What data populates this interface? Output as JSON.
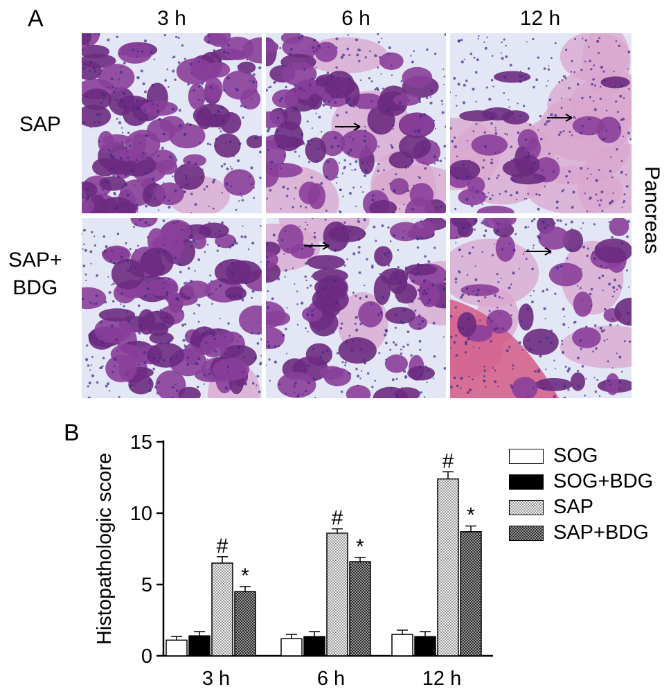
{
  "panelA": {
    "letter": "A",
    "columns": [
      "3 h",
      "6 h",
      "12 h"
    ],
    "rows": [
      {
        "label_lines": [
          "SAP"
        ]
      },
      {
        "label_lines": [
          "SAP+",
          "BDG"
        ]
      }
    ],
    "side_label": "Pancreas",
    "arrow_note": "→",
    "tile_colors": {
      "stroma": "#e3e6f4",
      "acini": "#8a3f9a",
      "acini_dark": "#6b2a80",
      "nuclei": "#3a2a8a",
      "necrosis": "#d9a6cf",
      "hemorrhage": "#d45a86"
    }
  },
  "panelB": {
    "letter": "B"
  },
  "chart_data": {
    "type": "bar",
    "categories": [
      "3 h",
      "6 h",
      "12 h"
    ],
    "ylabel": "Histopathologic score",
    "xlabel": "",
    "ylim": [
      0,
      15
    ],
    "yticks": [
      0,
      5,
      10,
      15
    ],
    "series": [
      {
        "name": "SOG",
        "fill": "#ffffff",
        "pattern": "none",
        "values": [
          1.1,
          1.2,
          1.5
        ],
        "errors": [
          0.25,
          0.3,
          0.3
        ],
        "marks": [
          "",
          "",
          ""
        ]
      },
      {
        "name": "SOG+BDG",
        "fill": "#000000",
        "pattern": "none",
        "values": [
          1.4,
          1.35,
          1.35
        ],
        "errors": [
          0.3,
          0.35,
          0.35
        ],
        "marks": [
          "",
          "",
          ""
        ]
      },
      {
        "name": "SAP",
        "fill": "#dcdcdc",
        "pattern": "light-dots",
        "values": [
          6.5,
          8.6,
          12.4
        ],
        "errors": [
          0.45,
          0.3,
          0.5
        ],
        "marks": [
          "#",
          "#",
          "#"
        ]
      },
      {
        "name": "SAP+BDG",
        "fill": "#6e6e6e",
        "pattern": "dark-check",
        "values": [
          4.5,
          6.6,
          8.7
        ],
        "errors": [
          0.35,
          0.3,
          0.4
        ],
        "marks": [
          "*",
          "*",
          "*"
        ]
      }
    ],
    "legend_position": "right"
  }
}
